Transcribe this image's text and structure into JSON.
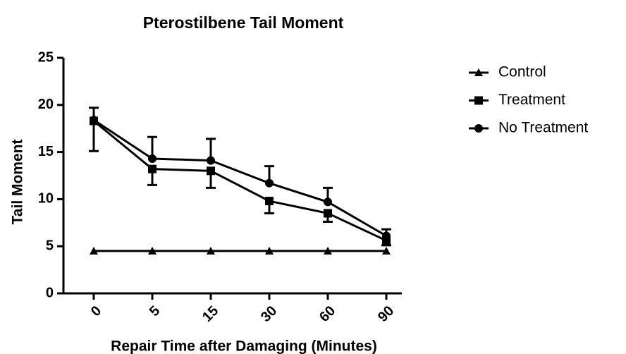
{
  "chart_data": {
    "type": "line",
    "title": "Pterostilbene Tail Moment",
    "x_label": "Repair Time after Damaging (Minutes)",
    "y_label": "Tail Moment",
    "categories": [
      "0",
      "5",
      "15",
      "30",
      "60",
      "90"
    ],
    "ylim": [
      0,
      25
    ],
    "yticks": [
      0,
      5,
      10,
      15,
      20,
      25
    ],
    "legend": "right",
    "series": [
      {
        "name": "Control",
        "color": "#000000",
        "marker": "triangle",
        "values": [
          4.5,
          4.5,
          4.5,
          4.5,
          4.5,
          4.5
        ]
      },
      {
        "name": "Treatment",
        "color": "#000000",
        "marker": "square",
        "error_direction": "below",
        "values": [
          18.3,
          13.2,
          13.0,
          9.8,
          8.5,
          5.6
        ],
        "errors": [
          3.2,
          1.7,
          1.8,
          1.3,
          0.9,
          0.5
        ]
      },
      {
        "name": "No Treatment",
        "color": "#000000",
        "marker": "circle",
        "error_direction": "above",
        "values": [
          18.4,
          14.3,
          14.1,
          11.7,
          9.7,
          6.1
        ],
        "errors": [
          1.3,
          2.3,
          2.3,
          1.8,
          1.5,
          0.7
        ]
      }
    ]
  }
}
